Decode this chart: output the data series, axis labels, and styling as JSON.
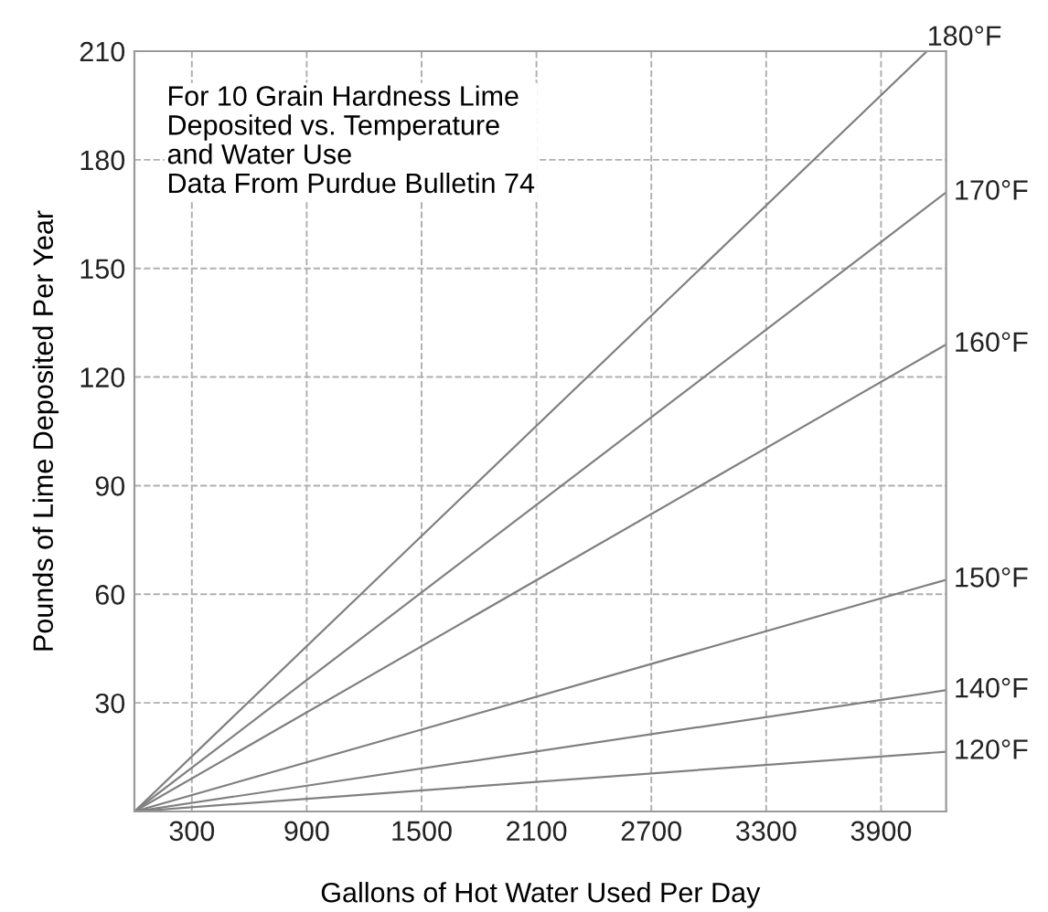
{
  "chart_data": {
    "type": "line",
    "xlabel": "Gallons of Hot Water Used Per Day",
    "ylabel": "Pounds of Lime Deposited Per Year",
    "annotations": [
      "For 10 Grain Hardness Lime\nDeposited vs. Temperature\nand Water Use\nData From Purdue Bulletin 74"
    ],
    "xlim": [
      0,
      4240
    ],
    "xticks": [
      300,
      900,
      1500,
      2100,
      2700,
      3300,
      3900
    ],
    "ylim": [
      0,
      210
    ],
    "yticks": [
      30,
      60,
      90,
      120,
      150,
      180,
      210
    ],
    "grid": true,
    "marker": "none",
    "line_style": "solid",
    "series": [
      {
        "name": "180°F",
        "color": "#808080",
        "x": [
          0,
          4140
        ],
        "values": [
          0,
          210
        ]
      },
      {
        "name": "170°F",
        "color": "#808080",
        "x": [
          0,
          4240
        ],
        "values": [
          0,
          171
        ]
      },
      {
        "name": "160°F",
        "color": "#808080",
        "x": [
          0,
          4240
        ],
        "values": [
          0,
          129
        ]
      },
      {
        "name": "150°F",
        "color": "#808080",
        "x": [
          0,
          4240
        ],
        "values": [
          0,
          64
        ]
      },
      {
        "name": "140°F",
        "color": "#808080",
        "x": [
          0,
          4240
        ],
        "values": [
          0,
          33.5
        ]
      },
      {
        "name": "120°F",
        "color": "#808080",
        "x": [
          0,
          4240
        ],
        "values": [
          0,
          16.5
        ]
      }
    ]
  }
}
